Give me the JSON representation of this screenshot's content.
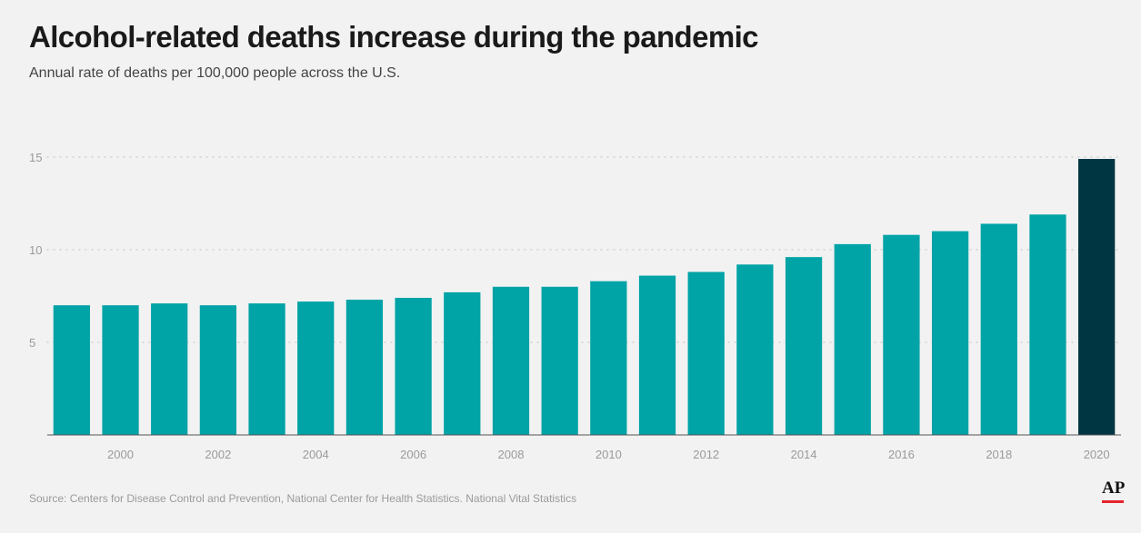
{
  "title": "Alcohol-related deaths increase during the pandemic",
  "subtitle": "Annual rate of deaths per 100,000 people across the U.S.",
  "source": "Source: Centers for Disease Control and Prevention, National Center for Health Statistics. National Vital Statistics",
  "logo_text": "AP",
  "colors": {
    "bar": "#00a3a6",
    "highlight": "#003641",
    "grid": "#c9c9c9",
    "axis": "#555555",
    "logo_accent": "#e8242c"
  },
  "chart_data": {
    "type": "bar",
    "title": "Alcohol-related deaths increase during the pandemic",
    "subtitle": "Annual rate of deaths per 100,000 people across the U.S.",
    "categories": [
      1999,
      2000,
      2001,
      2002,
      2003,
      2004,
      2005,
      2006,
      2007,
      2008,
      2009,
      2010,
      2011,
      2012,
      2013,
      2014,
      2015,
      2016,
      2017,
      2018,
      2019,
      2020
    ],
    "x_tick_labels": [
      "2000",
      "2002",
      "2004",
      "2006",
      "2008",
      "2010",
      "2012",
      "2014",
      "2016",
      "2018",
      "2020"
    ],
    "values": [
      7.0,
      7.0,
      7.1,
      7.0,
      7.1,
      7.2,
      7.3,
      7.4,
      7.7,
      8.0,
      8.0,
      8.3,
      8.6,
      8.8,
      9.2,
      9.6,
      10.3,
      10.8,
      11.0,
      11.4,
      11.9,
      14.9
    ],
    "highlight_category": 2020,
    "ylim": [
      0,
      15
    ],
    "y_ticks": [
      5,
      10,
      15
    ],
    "grid": true,
    "xlabel": "",
    "ylabel": ""
  }
}
